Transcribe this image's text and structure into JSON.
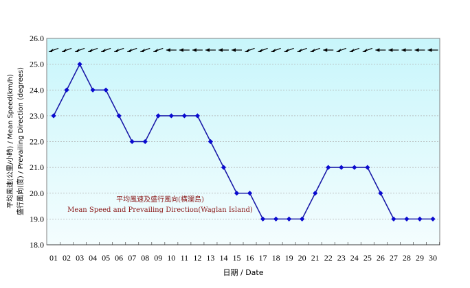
{
  "chart_data": {
    "type": "line",
    "title": "",
    "annotation_zh": "平均風速及盛行風向(橫瀾島)",
    "annotation_en": "Mean Speed and Prevailing Direction(Waglan Island)",
    "xlabel": "日期 / Date",
    "ylabel_line1": "平均風速(公里/小時) / Mean Speed(km/h)",
    "ylabel_line2": "盛行風向(度) / Prevailing Direction (degrees)",
    "ylim": [
      18.0,
      26.0
    ],
    "yticks": [
      "18.0",
      "19.0",
      "20.0",
      "21.0",
      "22.0",
      "23.0",
      "24.0",
      "25.0",
      "26.0"
    ],
    "categories": [
      "01",
      "02",
      "03",
      "04",
      "05",
      "06",
      "07",
      "08",
      "09",
      "10",
      "11",
      "12",
      "13",
      "14",
      "15",
      "16",
      "17",
      "18",
      "19",
      "20",
      "21",
      "22",
      "23",
      "24",
      "25",
      "26",
      "27",
      "28",
      "29",
      "30"
    ],
    "series": [
      {
        "name": "Mean Speed (km/h)",
        "color": "#0000cc",
        "values": [
          23,
          24,
          25,
          24,
          24,
          23,
          22,
          22,
          23,
          23,
          23,
          23,
          22,
          21,
          20,
          20,
          19,
          19,
          19,
          19,
          20,
          21,
          21,
          21,
          21,
          20,
          19,
          19,
          19,
          19
        ]
      }
    ],
    "prevailing_direction_arrows": [
      "ENE",
      "ENE",
      "ENE",
      "ENE",
      "ENE",
      "ENE",
      "ENE",
      "ENE",
      "ENE",
      "E",
      "E",
      "E",
      "E",
      "E",
      "E",
      "ENE",
      "ENE",
      "ENE",
      "ENE",
      "ENE",
      "ENE",
      "E",
      "ENE",
      "ENE",
      "ENE",
      "E",
      "E",
      "E",
      "E",
      "E"
    ],
    "grid": true,
    "background": [
      "#ccf7fb",
      "#ffffff"
    ]
  }
}
